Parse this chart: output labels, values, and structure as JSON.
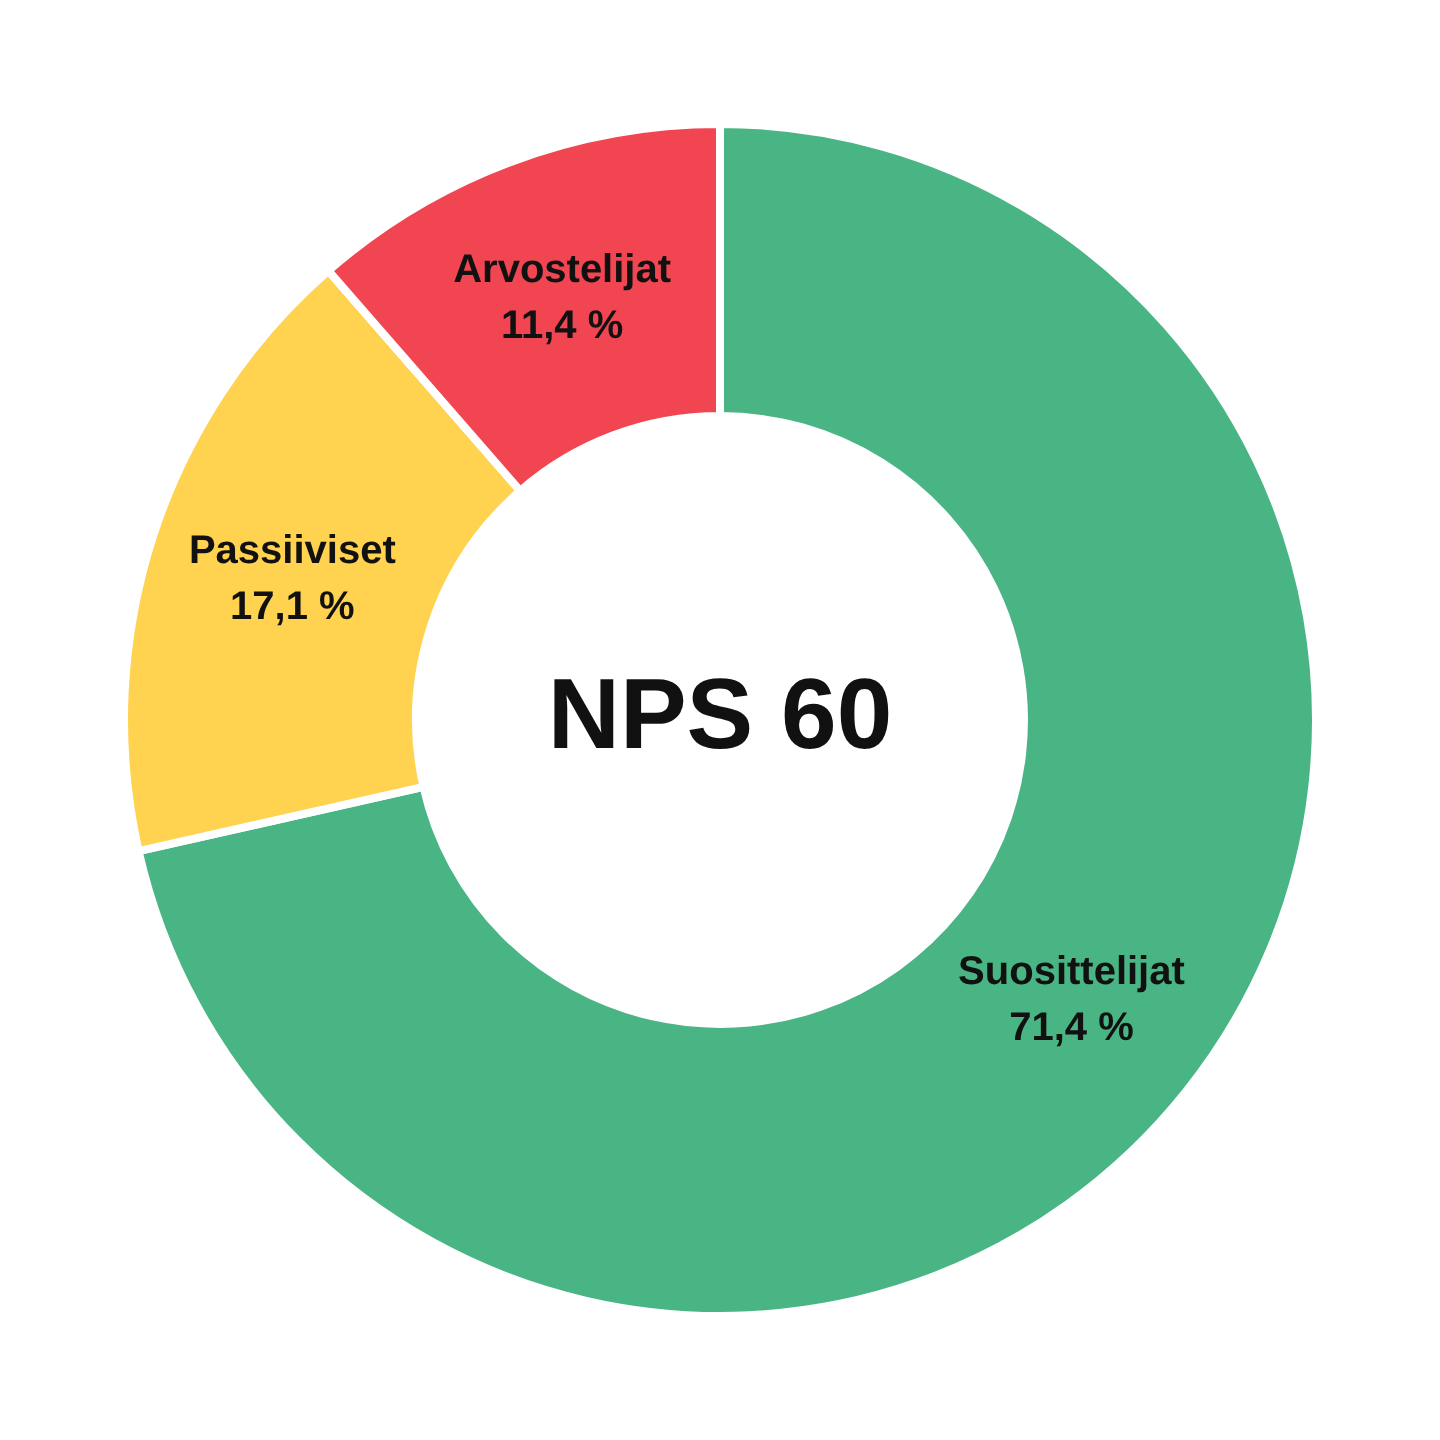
{
  "chart_data": {
    "type": "donut",
    "categories": [
      "Suosittelijat",
      "Passiiviset",
      "Arvostelijat"
    ],
    "values": [
      71.4,
      17.1,
      11.4
    ],
    "colors": [
      "#4ab584",
      "#ffd24f",
      "#f24552"
    ],
    "value_labels": [
      "71,4 %",
      "17,1 %",
      "11,4 %"
    ],
    "annotations": [
      "NPS 60"
    ]
  }
}
